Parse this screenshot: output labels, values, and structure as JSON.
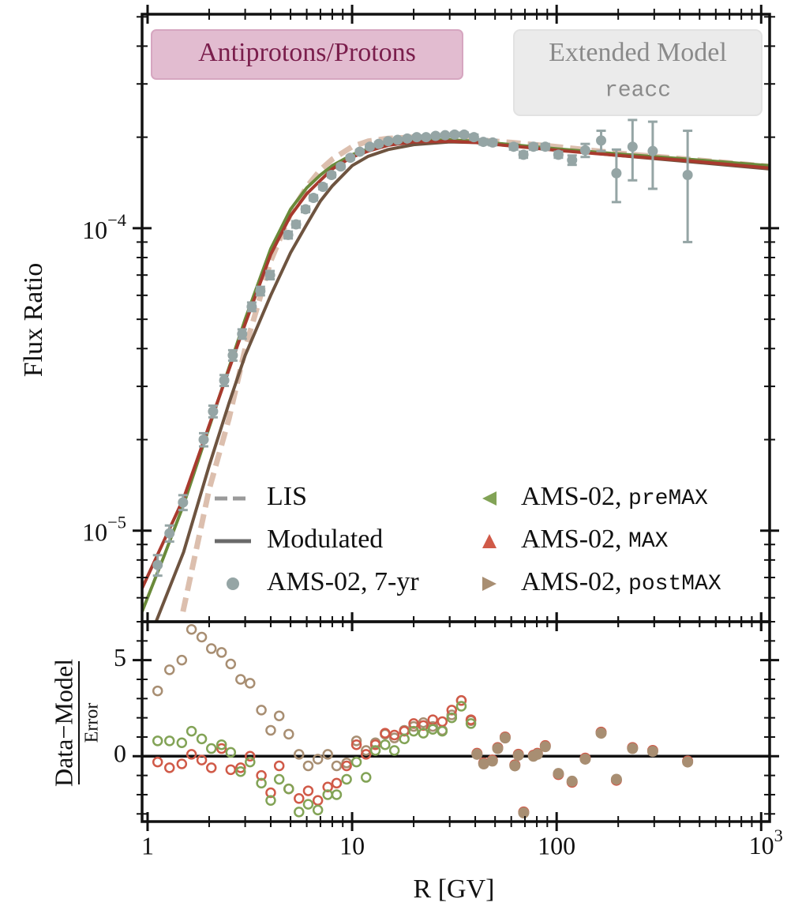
{
  "chart_data": [
    {
      "type": "line",
      "log_x": true,
      "log_y": true,
      "ylabel": "Flux Ratio",
      "xlim": [
        0.94,
        1100
      ],
      "ylim": [
        5e-06,
        0.00051
      ],
      "yticks": [
        {
          "value": 1e-05,
          "label": "10^{−5}"
        },
        {
          "value": 0.0001,
          "label": "10^{−4}"
        }
      ],
      "yminorticks": [
        6e-06,
        7e-06,
        8e-06,
        9e-06,
        2e-05,
        3e-05,
        4e-05,
        5e-05,
        6e-05,
        7e-05,
        8e-05,
        9e-05,
        0.0002,
        0.0003,
        0.0004,
        0.0005
      ],
      "annotations": [
        {
          "text": "Antiprotons/Protons"
        },
        {
          "text": "Extended Model",
          "code": "reacc"
        }
      ],
      "lines": [
        {
          "color": "#dcbfae",
          "style": "dashed",
          "x": [
            1.49,
            2,
            2.5,
            3,
            4,
            5,
            6,
            7,
            8,
            10,
            12,
            15,
            20,
            30,
            40,
            60,
            100,
            200,
            400,
            1100
          ],
          "y": [
            5.4e-06,
            1.37e-05,
            2.35e-05,
            4e-05,
            7.8e-05,
            0.000112,
            0.000137,
            0.000156,
            0.000169,
            0.000186,
            0.000194,
            0.000198,
            0.0002,
            0.000198,
            0.000196,
            0.000192,
            0.000186,
            0.000177,
            0.00017,
            0.00016
          ]
        },
        {
          "color": "#6e5440",
          "style": "solid",
          "x": [
            1.1,
            1.5,
            2,
            2.5,
            3,
            4,
            5,
            6,
            7,
            8,
            10,
            12,
            15,
            20,
            30,
            40,
            60,
            100,
            200,
            400,
            1100
          ],
          "y": [
            5e-06,
            8.5e-06,
            1.64e-05,
            2.64e-05,
            3.8e-05,
            6e-05,
            8.3e-05,
            0.000103,
            0.000123,
            0.000138,
            0.000161,
            0.000173,
            0.000182,
            0.000189,
            0.000193,
            0.000192,
            0.000188,
            0.000182,
            0.000174,
            0.000167,
            0.000157
          ]
        },
        {
          "color": "#6a8a3a",
          "style": "solid",
          "x": [
            0.94,
            1.2,
            1.5,
            2,
            3,
            4,
            5,
            6,
            7,
            8,
            10,
            12,
            15,
            20,
            30,
            40,
            60,
            100,
            200,
            400,
            1100
          ],
          "y": [
            5.4e-06,
            8.2e-06,
            1.22e-05,
            2.2e-05,
            5e-05,
            8.55e-05,
            0.0001155,
            0.000136,
            0.00015,
            0.000161,
            0.000175,
            0.000183,
            0.00019,
            0.000195,
            0.000196,
            0.000194,
            0.000189,
            0.000183,
            0.000176,
            0.00017,
            0.000161
          ]
        },
        {
          "color": "#a83a2e",
          "style": "solid",
          "x": [
            0.94,
            1.5,
            2,
            3,
            4,
            5,
            6,
            7,
            8,
            10,
            12,
            15,
            20,
            30,
            40,
            60,
            100,
            200,
            400,
            1100
          ],
          "y": [
            6.45e-06,
            1.28e-05,
            2.23e-05,
            4.83e-05,
            8.2e-05,
            0.00011,
            0.00013,
            0.000144,
            0.000157,
            0.000172,
            0.00018,
            0.000188,
            0.000193,
            0.000194,
            0.000192,
            0.000187,
            0.000181,
            0.000174,
            0.000168,
            0.000158
          ]
        }
      ],
      "points": {
        "color": "#95a5a5",
        "x": [
          1.12,
          1.28,
          1.49,
          1.88,
          2.09,
          2.37,
          2.61,
          2.9,
          3.23,
          3.56,
          3.97,
          4.87,
          5.32,
          5.92,
          6.47,
          7.2,
          7.93,
          8.8,
          9.8,
          10.9,
          12.2,
          13.5,
          15,
          16.7,
          18.6,
          20.7,
          23,
          25.6,
          28.5,
          31.7,
          35.3,
          39.4,
          43.8,
          48.7,
          61.6,
          68.8,
          77,
          88,
          102,
          119,
          138,
          165,
          196,
          235,
          295,
          437
        ],
        "y": [
          7.7e-06,
          9.8e-06,
          1.24e-05,
          2e-05,
          2.48e-05,
          3.14e-05,
          3.8e-05,
          4.47e-05,
          5.5e-05,
          6.2e-05,
          7e-05,
          9.5e-05,
          0.000103,
          0.0001155,
          0.000126,
          0.000137,
          0.00015,
          0.00016,
          0.000171,
          0.000179,
          0.000186,
          0.00019,
          0.000194,
          0.000196,
          0.000198,
          0.0002,
          0.0002,
          0.000202,
          0.000203,
          0.000204,
          0.000204,
          0.0002,
          0.000193,
          0.000192,
          0.000186,
          0.000175,
          0.000186,
          0.000186,
          0.000175,
          0.000168,
          0.000181,
          0.000195,
          0.000152,
          0.000186,
          0.00018,
          0.00015
        ],
        "errors": [
          6e-07,
          6e-07,
          7e-07,
          1e-06,
          1.1e-06,
          1.3e-06,
          1.5e-06,
          1.6e-06,
          1.8e-06,
          2e-06,
          2.2e-06,
          2.5e-06,
          2.5e-06,
          2.5e-06,
          2.5e-06,
          2.5e-06,
          2.5e-06,
          2.5e-06,
          2.5e-06,
          2.5e-06,
          2.5e-06,
          2.5e-06,
          2.5e-06,
          2.5e-06,
          2.5e-06,
          2.5e-06,
          2.5e-06,
          2.5e-06,
          2.5e-06,
          3e-06,
          3e-06,
          4e-06,
          4e-06,
          4e-06,
          4e-06,
          4e-06,
          4e-06,
          4e-06,
          4e-06,
          6e-06,
          9e-06,
          1.5e-05,
          3e-05,
          4.2e-05,
          4.5e-05,
          6e-05
        ]
      },
      "legend": [
        {
          "label": "LIS",
          "kind": "line",
          "style": "dashed",
          "color": "#9a9a9a"
        },
        {
          "label": "Modulated",
          "kind": "line",
          "style": "solid",
          "color": "#6a6a6a"
        },
        {
          "label": "AMS-02, 7-yr",
          "kind": "marker",
          "marker": "circle",
          "color": "#95a5a5"
        },
        {
          "label": "AMS-02, ",
          "code": "preMAX",
          "kind": "marker",
          "marker": "triangle-left",
          "color": "#82a356"
        },
        {
          "label": "AMS-02, ",
          "code": "MAX",
          "kind": "marker",
          "marker": "triangle-up",
          "color": "#d05a48"
        },
        {
          "label": "AMS-02, ",
          "code": "postMAX",
          "kind": "marker",
          "marker": "triangle-right",
          "color": "#a88e72"
        }
      ]
    },
    {
      "type": "scatter",
      "log_x": true,
      "xlabel": "R [GV]",
      "ylabel": {
        "numerator": "Data−Model",
        "denominator": "Error"
      },
      "xlim": [
        0.94,
        1100
      ],
      "ylim": [
        -3.4,
        7
      ],
      "xticks": [
        1,
        10,
        100,
        {
          "value": 1000,
          "label": "10^{3}"
        }
      ],
      "xminorticks": [
        2,
        3,
        4,
        5,
        6,
        7,
        8,
        9,
        20,
        30,
        40,
        50,
        60,
        70,
        80,
        90,
        200,
        300,
        400,
        500,
        600,
        700,
        800,
        900
      ],
      "yticks": [
        0,
        5
      ],
      "yminorticks": [
        -3,
        -2,
        -1,
        1,
        2,
        3,
        4,
        6,
        7
      ],
      "zero_line": true,
      "series": [
        {
          "color": "#a88e72",
          "filled": false,
          "x": [
            1.12,
            1.28,
            1.47,
            1.64,
            1.84,
            2.05,
            2.3,
            2.55,
            2.85,
            3.17,
            3.6,
            4.0,
            4.4,
            4.9,
            5.5,
            6.1,
            6.8,
            7.6,
            8.4,
            9.4,
            10.5,
            11.7,
            13.0,
            14.5,
            16.1,
            18.0,
            20.0,
            22.3,
            24.8,
            27.6,
            30.7,
            34.2,
            38.1
          ],
          "values": [
            3.4,
            4.5,
            5.0,
            6.6,
            6.2,
            5.6,
            5.4,
            4.8,
            4.0,
            3.8,
            2.4,
            1.35,
            2.1,
            1.15,
            0.1,
            -0.5,
            -0.15,
            0.1,
            -0.5,
            -0.35,
            0.8,
            0.3,
            0.7,
            1.15,
            0.95,
            1.35,
            1.55,
            1.75,
            1.55,
            1.35,
            2.15,
            2.9,
            1.85
          ]
        },
        {
          "color": "#d05a48",
          "filled": false,
          "x": [
            1.12,
            1.28,
            1.47,
            1.64,
            1.84,
            2.05,
            2.3,
            2.55,
            2.85,
            3.17,
            3.6,
            4.0,
            4.4,
            4.9,
            5.5,
            6.1,
            6.8,
            7.6,
            8.4,
            9.4,
            10.5,
            11.7,
            13.0,
            14.5,
            16.1,
            18.0,
            20.0,
            22.3,
            24.8,
            27.6,
            30.7,
            34.2,
            38.1
          ],
          "values": [
            -0.3,
            -0.6,
            -0.4,
            0.1,
            -0.2,
            -0.6,
            0.4,
            -0.7,
            -0.6,
            0,
            -1.0,
            -1.9,
            -0.5,
            -1.7,
            -2.2,
            -1.8,
            -2.3,
            -1.6,
            -1.4,
            -0.5,
            0.6,
            0.1,
            0.6,
            1.2,
            1.1,
            1.3,
            1.7,
            1.6,
            1.9,
            1.8,
            2.4,
            2.9,
            1.9
          ]
        },
        {
          "color": "#82a356",
          "filled": false,
          "x": [
            1.12,
            1.28,
            1.47,
            1.64,
            1.84,
            2.05,
            2.3,
            2.55,
            2.85,
            3.17,
            3.6,
            4.0,
            4.4,
            4.9,
            5.5,
            6.1,
            6.8,
            7.6,
            8.4,
            9.4,
            10.5,
            11.7,
            13.0,
            14.5,
            16.1,
            18.0,
            20.0,
            22.3,
            24.8,
            27.6,
            30.7,
            34.2,
            38.1
          ],
          "values": [
            0.8,
            0.8,
            0.7,
            1.3,
            0.9,
            0.4,
            0.6,
            0.2,
            -0.8,
            -0.3,
            -1.4,
            -2.3,
            -1.2,
            -1.7,
            -2.9,
            -2.5,
            -2.8,
            -2.0,
            -2.0,
            -1.2,
            -0.3,
            -1.1,
            0.3,
            0.6,
            0.3,
            0.9,
            1.3,
            1.2,
            1.4,
            1.3,
            2.0,
            2.6,
            1.7
          ]
        },
        {
          "color": "#d05a48",
          "filled": true,
          "x": [
            40.8,
            44,
            48.5,
            51.5,
            56,
            62.5,
            65,
            69,
            77,
            80.5,
            88,
            102,
            119,
            138,
            165,
            196,
            235,
            295,
            437
          ],
          "values": [
            0.15,
            -0.35,
            -0.2,
            0.45,
            1.0,
            -0.45,
            0.1,
            -2.9,
            0.05,
            0.15,
            0.55,
            -0.95,
            -1.35,
            -0.1,
            1.25,
            -1.25,
            0.45,
            0.3,
            -0.25
          ]
        },
        {
          "color": "#a88e72",
          "filled": true,
          "x": [
            40.8,
            44,
            48.5,
            51.5,
            56,
            62.5,
            65,
            69,
            77,
            80.5,
            88,
            102,
            119,
            138,
            165,
            196,
            235,
            295,
            437
          ],
          "values": [
            0.1,
            -0.4,
            -0.25,
            0.4,
            0.95,
            -0.5,
            0.05,
            -2.95,
            0,
            0.1,
            0.5,
            -0.9,
            -1.3,
            -0.15,
            1.2,
            -1.2,
            0.4,
            0.25,
            -0.3
          ]
        }
      ]
    }
  ]
}
